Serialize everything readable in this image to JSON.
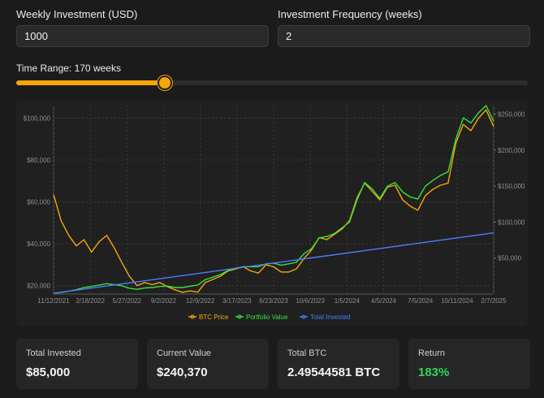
{
  "weekly_investment": {
    "label": "Weekly Investment (USD)",
    "value": "1000"
  },
  "frequency": {
    "label": "Investment Frequency (weeks)",
    "value": "2"
  },
  "time_range": {
    "label": "Time Range: 170 weeks",
    "fraction": 0.29
  },
  "stats": [
    {
      "label": "Total Invested",
      "value": "$85,000"
    },
    {
      "label": "Current Value",
      "value": "$240,370"
    },
    {
      "label": "Total BTC",
      "value": "2.49544581 BTC"
    },
    {
      "label": "Return",
      "value": "183%",
      "color": "#2fd65a"
    }
  ],
  "chart_data": {
    "type": "line",
    "x_ticks": [
      "11/12/2021",
      "2/18/2022",
      "5/27/2022",
      "9/2/2022",
      "12/9/2022",
      "3/17/2023",
      "6/23/2023",
      "10/6/2023",
      "1/5/2024",
      "4/5/2024",
      "7/5/2024",
      "10/11/2024",
      "2/7/2025"
    ],
    "y_left": {
      "range": [
        16000,
        106000
      ],
      "ticks": [
        20000,
        40000,
        60000,
        80000,
        100000
      ],
      "tick_labels": [
        "$20,000",
        "$40,000",
        "$60,000",
        "$80,000",
        "$100,000"
      ]
    },
    "y_right": {
      "range": [
        0,
        262000
      ],
      "ticks": [
        50000,
        100000,
        150000,
        200000,
        250000
      ],
      "tick_labels": [
        "$50,000",
        "$100,000",
        "$150,000",
        "$200,000",
        "$250,000"
      ]
    },
    "grid": true,
    "legend_position": "bottom",
    "series": [
      {
        "name": "BTC Price",
        "axis": "left",
        "color": "#f5a70a",
        "values": [
          63500,
          51000,
          44000,
          39000,
          42000,
          36000,
          41000,
          44000,
          38000,
          31000,
          24500,
          20000,
          21500,
          20500,
          21500,
          19500,
          18000,
          16800,
          17500,
          16900,
          21500,
          23000,
          24500,
          27000,
          28000,
          29000,
          27000,
          26000,
          30000,
          29000,
          26500,
          26500,
          28000,
          33000,
          37000,
          43000,
          42000,
          44500,
          47000,
          51000,
          62000,
          69000,
          65000,
          61000,
          67000,
          68000,
          61000,
          58000,
          56000,
          63000,
          66000,
          68000,
          69000,
          88000,
          97000,
          94000,
          100000,
          104000,
          96000
        ]
      },
      {
        "name": "Portfolio Value",
        "axis": "right",
        "color": "#35e23d",
        "values": [
          1000,
          2300,
          4000,
          6000,
          9000,
          10500,
          12500,
          14500,
          13000,
          11500,
          8000,
          6500,
          8500,
          9000,
          10500,
          11000,
          9000,
          9000,
          11000,
          12500,
          20000,
          23500,
          27000,
          33000,
          36000,
          38000,
          38000,
          38000,
          42000,
          43000,
          40000,
          42000,
          44000,
          56000,
          63000,
          78000,
          80000,
          84000,
          92000,
          100000,
          131000,
          155000,
          146000,
          133000,
          150000,
          155000,
          142000,
          135000,
          132000,
          150000,
          158000,
          165000,
          170000,
          215000,
          245000,
          238000,
          252000,
          262000,
          240370
        ]
      },
      {
        "name": "Total Invested",
        "axis": "right",
        "color": "#4c7dff",
        "values": [
          1000,
          85000
        ]
      }
    ]
  }
}
